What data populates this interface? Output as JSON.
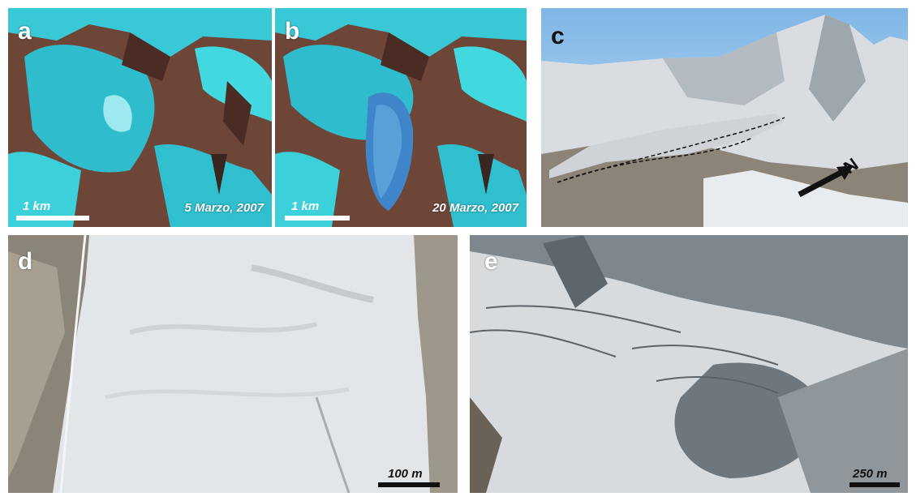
{
  "panels": {
    "a": {
      "letter": "a",
      "scale_label": "1 km",
      "date": "5 Marzo, 2007"
    },
    "b": {
      "letter": "b",
      "scale_label": "1 km",
      "date": "20 Marzo, 2007"
    },
    "c": {
      "letter": "c",
      "north_label": "N"
    },
    "d": {
      "letter": "d",
      "scale_label": "100 m"
    },
    "e": {
      "letter": "e",
      "scale_label": "250 m"
    }
  },
  "colors": {
    "snow_cyan": "#3fe0e6",
    "rock_brown": "#7a4a3a",
    "snow_gray": "#e6e8ea",
    "shadow_gray": "#8c949a"
  }
}
